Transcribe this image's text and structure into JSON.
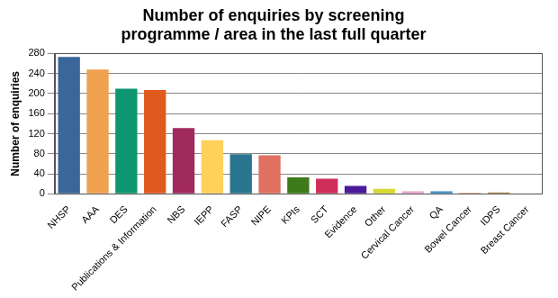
{
  "chart_data": {
    "type": "bar",
    "title": [
      "Number of enquiries by screening",
      "programme / area in the last full quarter"
    ],
    "y_label": "Number of enquiries",
    "categories": [
      "NHSP",
      "AAA",
      "DES",
      "Publications & Information",
      "NBS",
      "IEPP",
      "FASP",
      "NIPE",
      "KPIs",
      "SCT",
      "Evidence",
      "Other",
      "Cervical Cancer",
      "QA",
      "Bowel Cancer",
      "IDPS",
      "Breast Cancer"
    ],
    "values": [
      273,
      248,
      210,
      207,
      131,
      107,
      79,
      77,
      33,
      30,
      16,
      10,
      5,
      5,
      2,
      3,
      1
    ],
    "colors": [
      "#3a6699",
      "#f0a150",
      "#0e9670",
      "#e05a1e",
      "#a0295e",
      "#ffd05a",
      "#2a7490",
      "#e07060",
      "#3f7a1a",
      "#d02e5a",
      "#4a1a9a",
      "#d8d830",
      "#e8a0c8",
      "#3a8ac8",
      "#c87840",
      "#a07830",
      "#e080b0"
    ],
    "ylim": [
      0,
      280
    ],
    "yticks": [
      0,
      40,
      80,
      120,
      160,
      200,
      240,
      280
    ],
    "grid": true
  }
}
